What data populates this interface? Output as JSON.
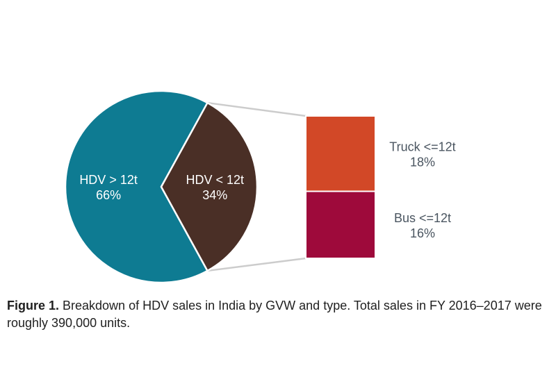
{
  "chart_data": {
    "type": "pie",
    "subtype": "bar-of-pie",
    "pie": {
      "slices": [
        {
          "label": "HDV > 12t",
          "pct_label": "66%",
          "value": 66,
          "color": "#0e7b92"
        },
        {
          "label": "HDV < 12t",
          "pct_label": "34%",
          "value": 34,
          "color": "#4a2f26"
        }
      ]
    },
    "breakdown_of": "HDV < 12t",
    "bar": {
      "segments": [
        {
          "label": "Truck <=12t",
          "pct_label": "18%",
          "value": 18,
          "color": "#d24827"
        },
        {
          "label": "Bus <=12t",
          "pct_label": "16%",
          "value": 16,
          "color": "#9e0a3b"
        }
      ]
    },
    "connector_color": "#cccccc",
    "inside_label_color": "#ffffff",
    "outside_label_color": "#4a5560"
  },
  "caption": {
    "label": "Figure 1.",
    "text": " Breakdown of HDV sales in India by GVW and type. Total sales in FY 2016–2017 were roughly 390,000 units."
  }
}
